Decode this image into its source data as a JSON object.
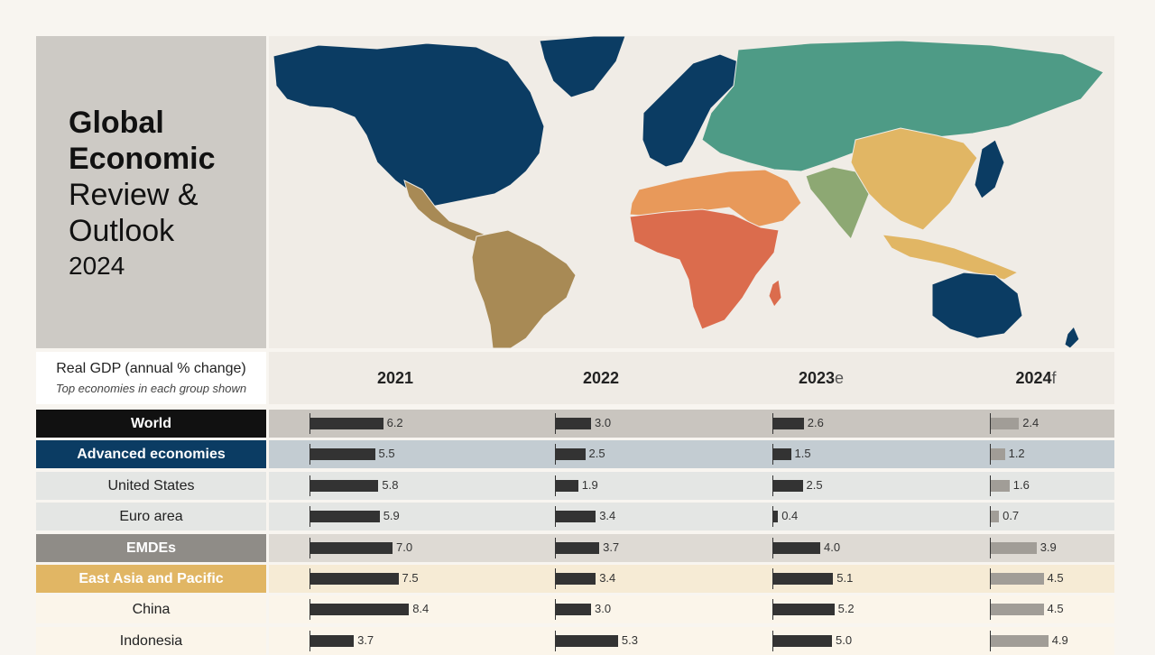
{
  "title": {
    "line1": "Global",
    "line2": "Economic",
    "line3": "Review &",
    "line4": "Outlook",
    "year": "2024"
  },
  "map": {
    "colors": {
      "advanced": "#0b3c63",
      "europe_central_asia": "#4e9b86",
      "east_asia_pacific": "#e1b664",
      "latin_america": "#a88a55",
      "mena": "#e8995a",
      "sub_saharan_africa": "#db6c4d",
      "south_asia": "#8da873",
      "ocean": "#f0ece6"
    }
  },
  "table": {
    "header_title": "Real GDP (annual % change)",
    "header_subtitle": "Top economies in each group shown",
    "years": [
      {
        "label": "2021",
        "suffix": ""
      },
      {
        "label": "2022",
        "suffix": ""
      },
      {
        "label": "2023",
        "suffix": "e"
      },
      {
        "label": "2024",
        "suffix": "f"
      }
    ],
    "rows": [
      {
        "name": "World",
        "values": [
          "6.2",
          "3.0",
          "2.6",
          "2.4"
        ],
        "label_bg": "#111111",
        "label_fg": "#ffffff",
        "bold": true,
        "row_bg": "#c9c5bf"
      },
      {
        "name": "Advanced economies",
        "values": [
          "5.5",
          "2.5",
          "1.5",
          "1.2"
        ],
        "label_bg": "#0b3c63",
        "label_fg": "#ffffff",
        "bold": true,
        "row_bg": "#c3ccd2"
      },
      {
        "name": "United States",
        "values": [
          "5.8",
          "1.9",
          "2.5",
          "1.6"
        ],
        "label_bg": "#e4e6e4",
        "label_fg": "#222222",
        "bold": false,
        "row_bg": "#e4e6e4"
      },
      {
        "name": "Euro area",
        "values": [
          "5.9",
          "3.4",
          "0.4",
          "0.7"
        ],
        "label_bg": "#e4e6e4",
        "label_fg": "#222222",
        "bold": false,
        "row_bg": "#e4e6e4"
      },
      {
        "name": "EMDEs",
        "values": [
          "7.0",
          "3.7",
          "4.0",
          "3.9"
        ],
        "label_bg": "#8f8c87",
        "label_fg": "#ffffff",
        "bold": true,
        "row_bg": "#dedad4"
      },
      {
        "name": "East Asia and Pacific",
        "values": [
          "7.5",
          "3.4",
          "5.1",
          "4.5"
        ],
        "label_bg": "#e1b664",
        "label_fg": "#ffffff",
        "bold": true,
        "row_bg": "#f6ebd5"
      },
      {
        "name": "China",
        "values": [
          "8.4",
          "3.0",
          "5.2",
          "4.5"
        ],
        "label_bg": "#fbf5ea",
        "label_fg": "#222222",
        "bold": false,
        "row_bg": "#fbf5ea"
      },
      {
        "name": "Indonesia",
        "values": [
          "3.7",
          "5.3",
          "5.0",
          "4.9"
        ],
        "label_bg": "#fbf5ea",
        "label_fg": "#222222",
        "bold": false,
        "row_bg": "#fbf5ea"
      }
    ]
  },
  "chart_data": {
    "type": "bar",
    "title": "Global Economic Review & Outlook 2024",
    "subtitle": "Real GDP (annual % change)",
    "categories": [
      "World",
      "Advanced economies",
      "United States",
      "Euro area",
      "EMDEs",
      "East Asia and Pacific",
      "China",
      "Indonesia"
    ],
    "series": [
      {
        "name": "2021",
        "values": [
          6.2,
          5.5,
          5.8,
          5.9,
          7.0,
          7.5,
          8.4,
          3.7
        ]
      },
      {
        "name": "2022",
        "values": [
          3.0,
          2.5,
          1.9,
          3.4,
          3.7,
          3.4,
          3.0,
          5.3
        ]
      },
      {
        "name": "2023e",
        "values": [
          2.6,
          1.5,
          2.5,
          0.4,
          4.0,
          5.1,
          5.2,
          5.0
        ]
      },
      {
        "name": "2024f",
        "values": [
          2.4,
          1.2,
          1.6,
          0.7,
          3.9,
          4.5,
          4.5,
          4.9
        ]
      }
    ],
    "bar_colors": [
      "#333333",
      "#333333",
      "#333333",
      "#a19d97"
    ],
    "xlim": [
      0,
      10
    ]
  }
}
